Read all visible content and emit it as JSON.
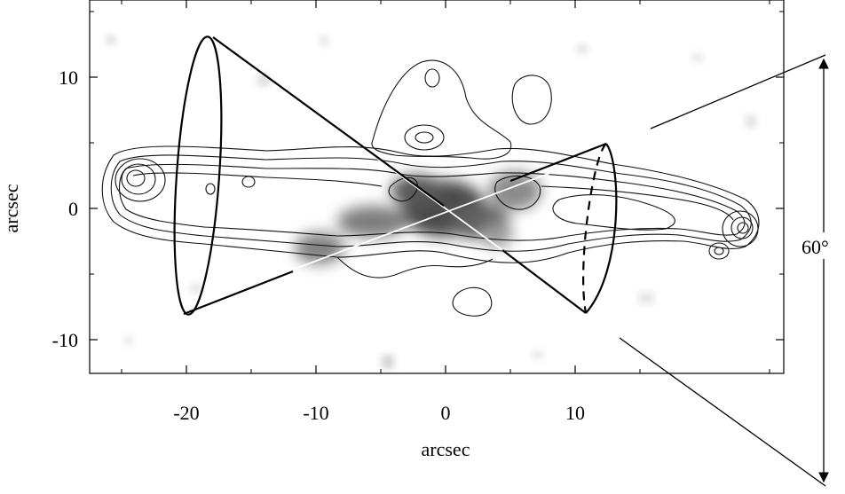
{
  "chart_data": {
    "type": "image",
    "xlabel": "arcsec",
    "ylabel": "arcsec",
    "xlim": [
      -27,
      26
    ],
    "ylim": [
      -12.5,
      15.5
    ],
    "x_ticks": [
      {
        "value": -20,
        "label": "-20"
      },
      {
        "value": -10,
        "label": "-10"
      },
      {
        "value": 0,
        "label": "0"
      },
      {
        "value": 10,
        "label": "10"
      }
    ],
    "y_ticks": [
      {
        "value": 10,
        "label": "10"
      },
      {
        "value": 0,
        "label": "0"
      },
      {
        "value": -10,
        "label": "-10"
      }
    ],
    "annotations": [
      {
        "text": "60°"
      }
    ],
    "cone_opening_angle_deg": 60
  }
}
